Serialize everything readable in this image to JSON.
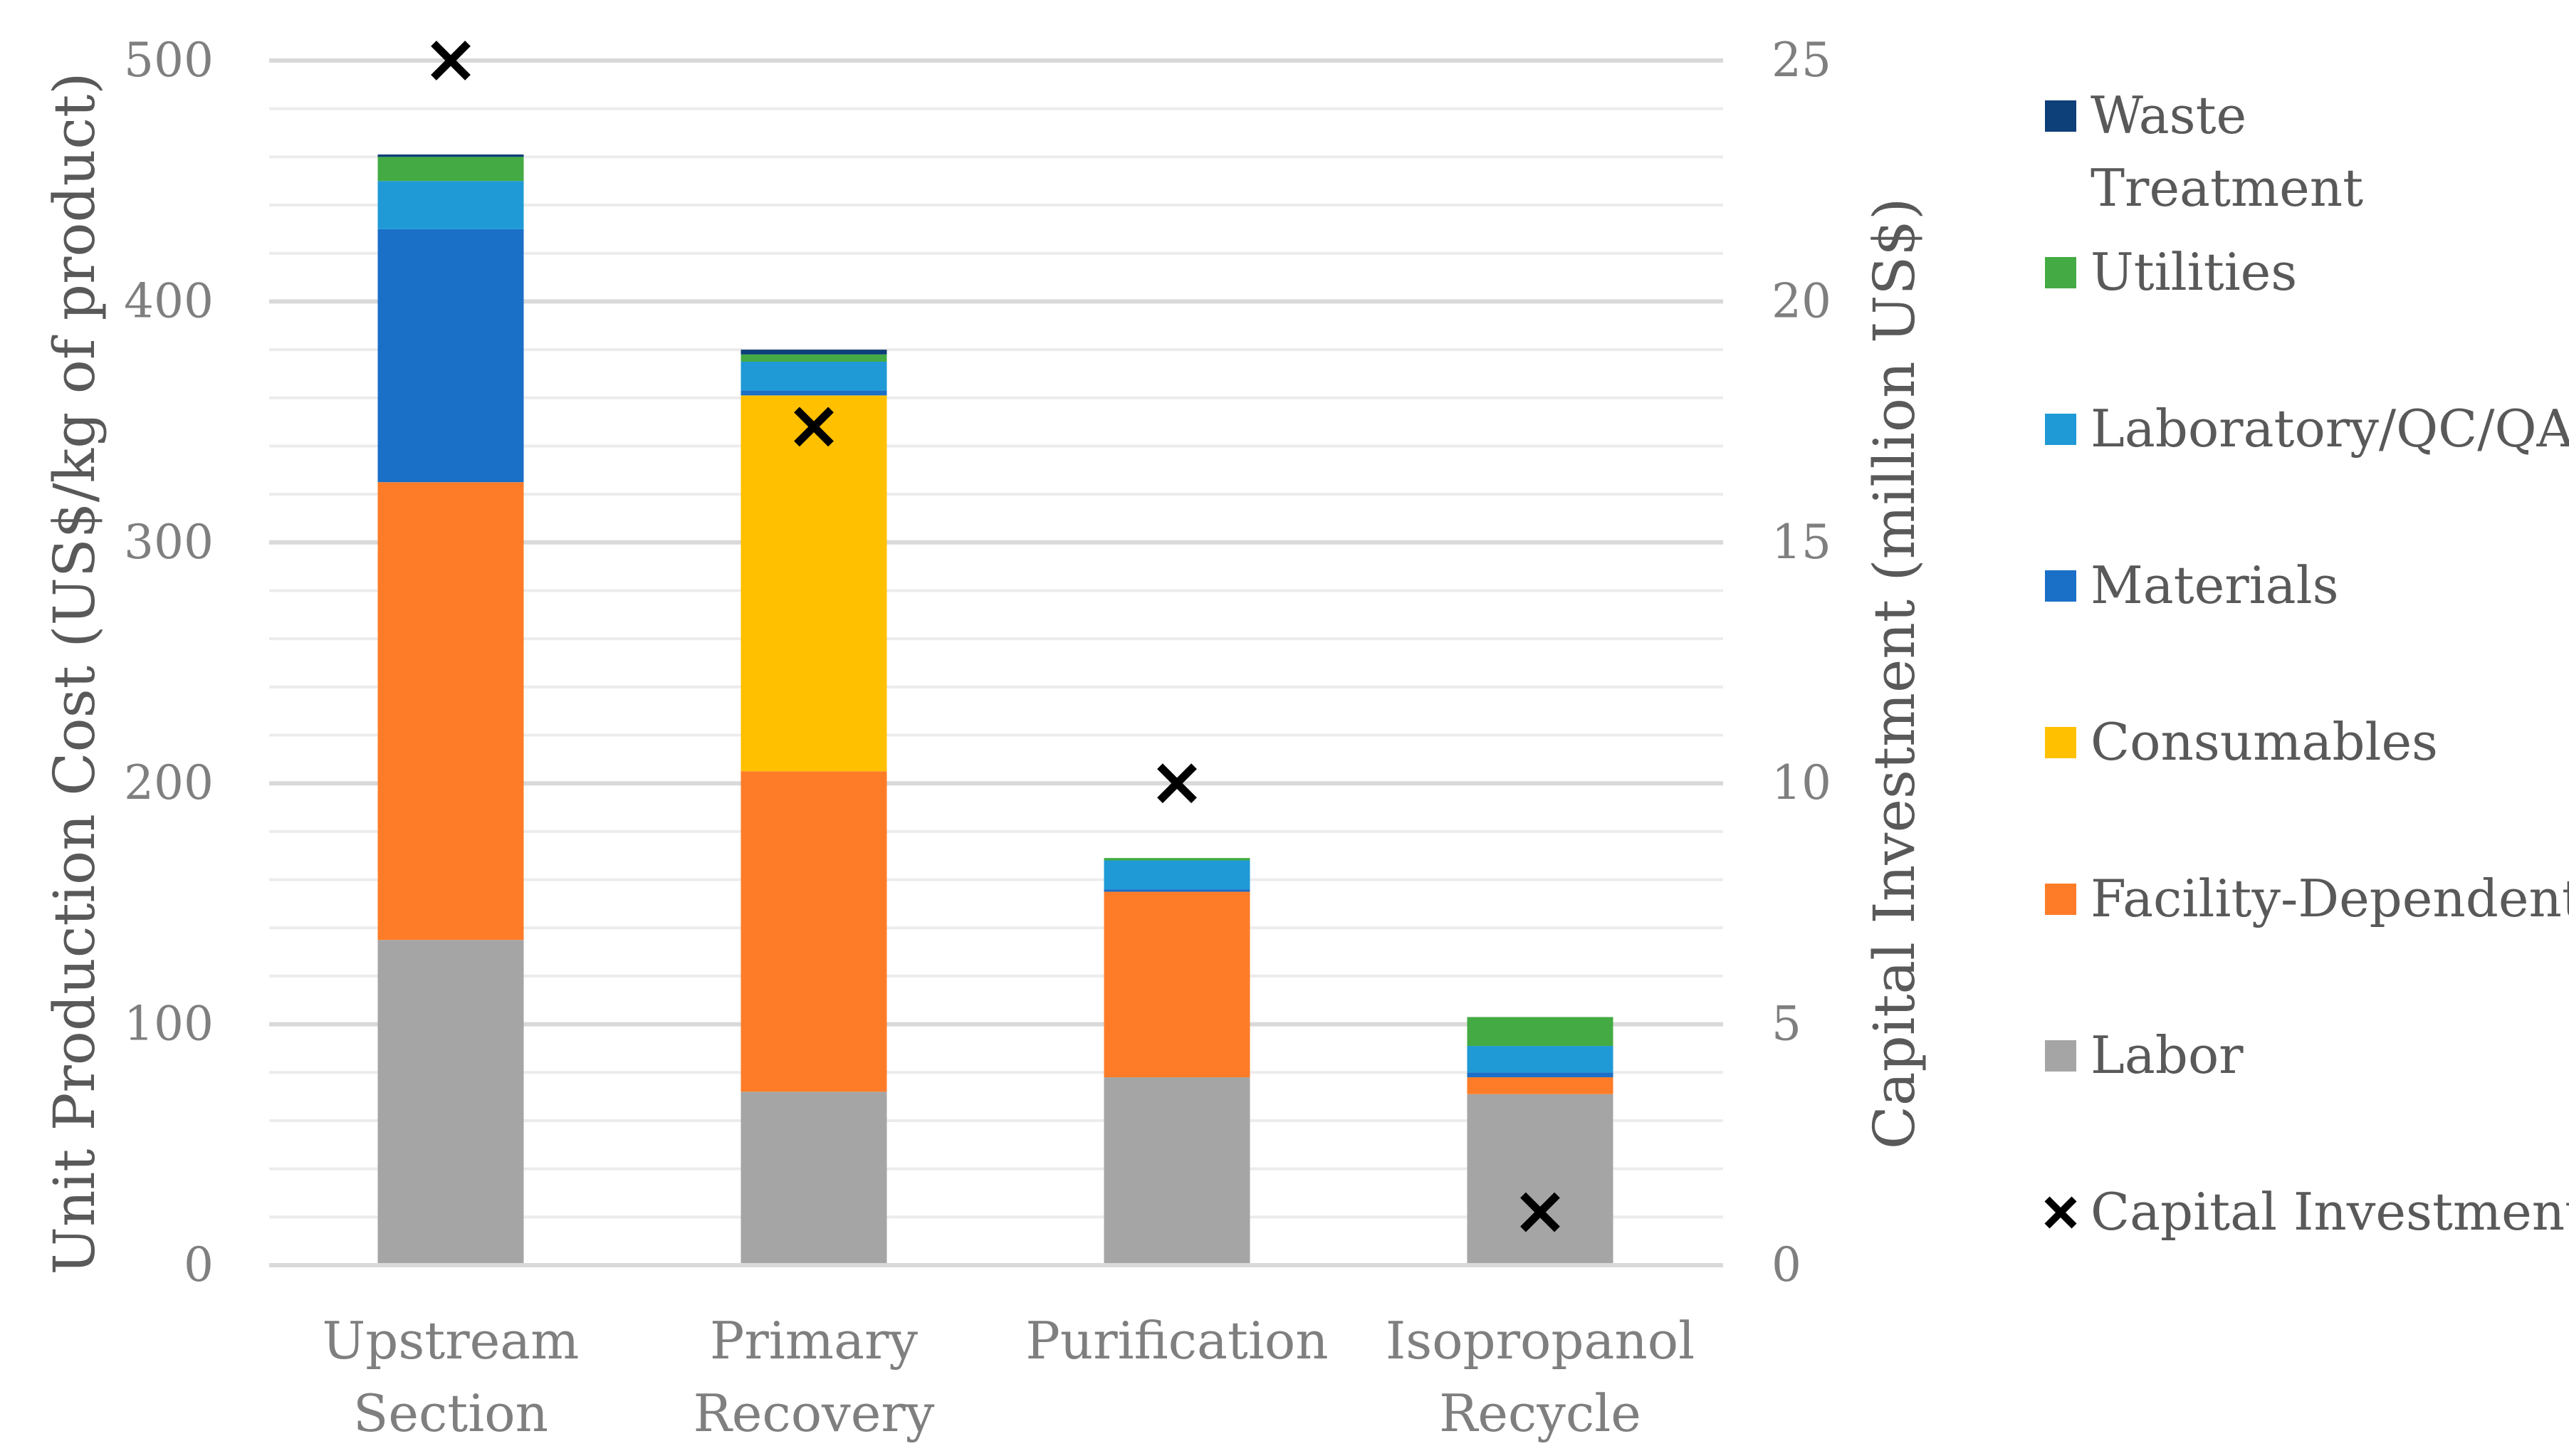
{
  "chart_data": {
    "type": "bar",
    "stacked": true,
    "categories": [
      [
        "Upstream",
        "Section"
      ],
      [
        "Primary",
        "Recovery"
      ],
      [
        "Purification"
      ],
      [
        "Isopropanol",
        "Recycle"
      ]
    ],
    "ylabel": "Unit Production Cost (US$/kg of product)",
    "y2label": "Capital Investment (million US$)",
    "ylim": [
      0,
      500
    ],
    "y2lim": [
      0,
      25
    ],
    "yticks": [
      "0",
      "100",
      "200",
      "300",
      "400",
      "500"
    ],
    "y2ticks": [
      "0",
      "5",
      "10",
      "15",
      "20",
      "25"
    ],
    "grid": true,
    "legend_position": "right",
    "series": [
      {
        "name": "Labor",
        "legend_label": [
          "Labor"
        ],
        "color": "#a5a5a5",
        "values": [
          135,
          72,
          78,
          71
        ]
      },
      {
        "name": "Facility-Dependent",
        "legend_label": [
          "Facility-Dependent"
        ],
        "color": "#fe7c28",
        "values": [
          190,
          133,
          77,
          7
        ]
      },
      {
        "name": "Consumables",
        "legend_label": [
          "Consumables"
        ],
        "color": "#ffc000",
        "values": [
          0,
          156,
          0,
          0
        ]
      },
      {
        "name": "Materials",
        "legend_label": [
          "Materials"
        ],
        "color": "#1a6fc7",
        "values": [
          105,
          2,
          1,
          2
        ]
      },
      {
        "name": "Laboratory/QC/QA",
        "legend_label": [
          "Laboratory/QC/QA"
        ],
        "color": "#1f9ad6",
        "values": [
          20,
          12,
          12,
          11
        ]
      },
      {
        "name": "Utilities",
        "legend_label": [
          "Utilities"
        ],
        "color": "#44ab44",
        "values": [
          10,
          3,
          1,
          12
        ]
      },
      {
        "name": "Waste Treatment",
        "legend_label": [
          "Waste",
          "Treatment"
        ],
        "color": "#0d3f78",
        "values": [
          1,
          2,
          0,
          0
        ]
      }
    ],
    "secondary_series": {
      "name": "Capital Investment",
      "legend_label": [
        "Capital Investment"
      ],
      "marker": "x",
      "color": "#000000",
      "values": [
        25,
        17.4,
        10,
        1.1
      ]
    }
  }
}
